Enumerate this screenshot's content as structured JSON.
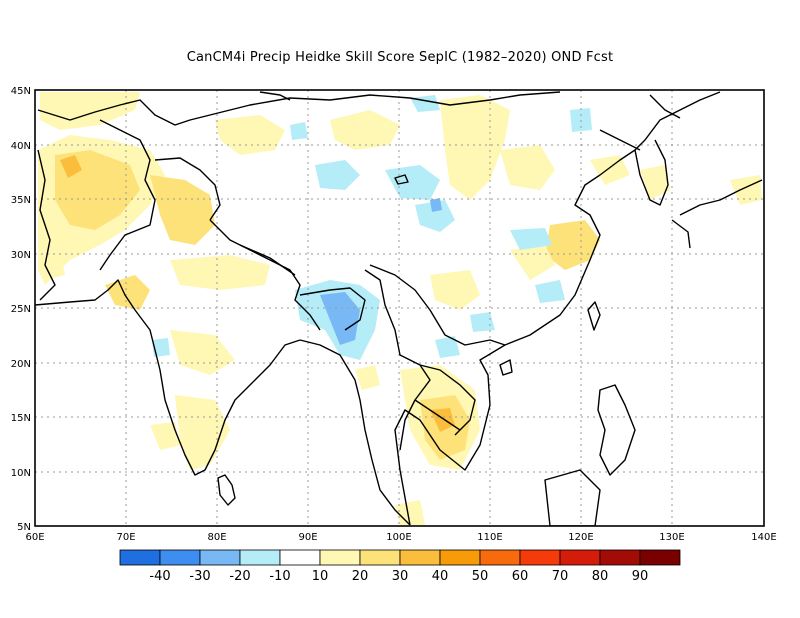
{
  "title": "CanCM4i Precip Heidke Skill Score SepIC (1982–2020) OND Fcst",
  "map": {
    "lon_range": [
      60,
      140
    ],
    "lat_range": [
      5,
      45
    ],
    "lon_ticks": [
      "60E",
      "70E",
      "80E",
      "90E",
      "100E",
      "110E",
      "120E",
      "130E",
      "140E"
    ],
    "lat_ticks": [
      "5N",
      "10N",
      "15N",
      "20N",
      "25N",
      "30N",
      "35N",
      "40N",
      "45N"
    ],
    "gridlines": "dotted"
  },
  "colorbar": {
    "labels": [
      "-40",
      "-30",
      "-20",
      "-10",
      "10",
      "20",
      "30",
      "40",
      "50",
      "60",
      "70",
      "80",
      "90"
    ],
    "colors": [
      "#1f6fe0",
      "#3d8ef0",
      "#78b8f4",
      "#b4ecf8",
      "#ffffff",
      "#fff7b4",
      "#fde27a",
      "#fbbe3c",
      "#f79b08",
      "#f76b0c",
      "#f53b0a",
      "#d41c0a",
      "#a30c06"
    ]
  },
  "legend_colors": {
    "yellow": "#fff7b4",
    "gold": "#fde27a",
    "orange": "#fbbe3c",
    "light_blue": "#b4ecf8",
    "blue": "#78b8f4"
  }
}
